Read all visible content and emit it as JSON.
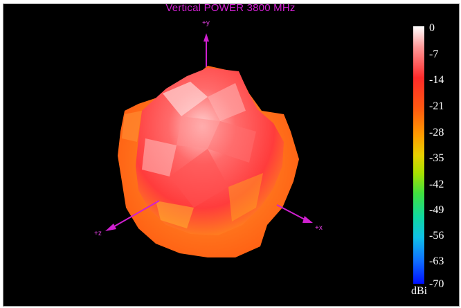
{
  "title": "Vertical POWER 3800  MHz",
  "axes": {
    "y": "+y",
    "x": "+x",
    "z": "+z"
  },
  "legend": {
    "unit": "dBi",
    "ticks": [
      "0",
      "-7",
      "-14",
      "-21",
      "-28",
      "-35",
      "-42",
      "-49",
      "-56",
      "-63",
      "-70"
    ],
    "colors": [
      "#ffffff",
      "#ff2a2a",
      "#ff9a00",
      "#e8d000",
      "#40e040",
      "#10c0e8",
      "#0010ff"
    ]
  }
}
